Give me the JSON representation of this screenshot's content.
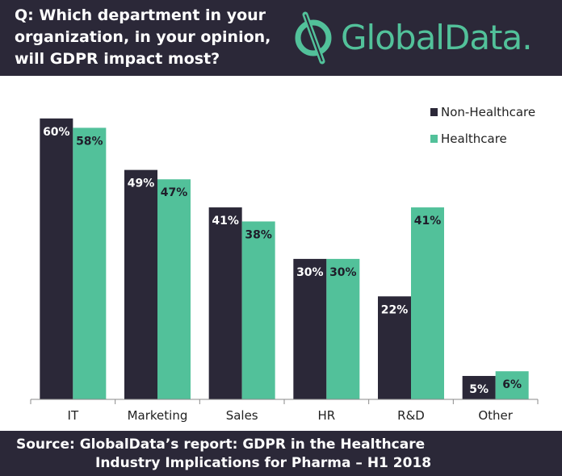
{
  "header": {
    "question": "Q: Which department in your organization, in your opinion, will GDPR impact most?",
    "logo_text": "GlobalData."
  },
  "footer": {
    "line1": "Source:  GlobalData’s report: GDPR in the Healthcare",
    "line2": "Industry Implications for Pharma – H1 2018"
  },
  "colors": {
    "non_healthcare": "#2b2838",
    "healthcare": "#52c19a",
    "brand_dark": "#2b2838",
    "brand_green": "#52c19a"
  },
  "chart_data": {
    "type": "bar",
    "categories": [
      "IT",
      "Marketing",
      "Sales",
      "HR",
      "R&D",
      "Other"
    ],
    "series": [
      {
        "name": "Non-Healthcare",
        "values": [
          60,
          49,
          41,
          30,
          22,
          5
        ],
        "labels": [
          "60%",
          "49%",
          "41%",
          "30%",
          "22%",
          "5%"
        ]
      },
      {
        "name": "Healthcare",
        "values": [
          58,
          47,
          38,
          30,
          41,
          6
        ],
        "labels": [
          "58%",
          "47%",
          "38%",
          "30%",
          "41%",
          "6%"
        ]
      }
    ],
    "ylim": [
      0,
      61
    ],
    "legend_position": "top-right",
    "grid": false
  }
}
